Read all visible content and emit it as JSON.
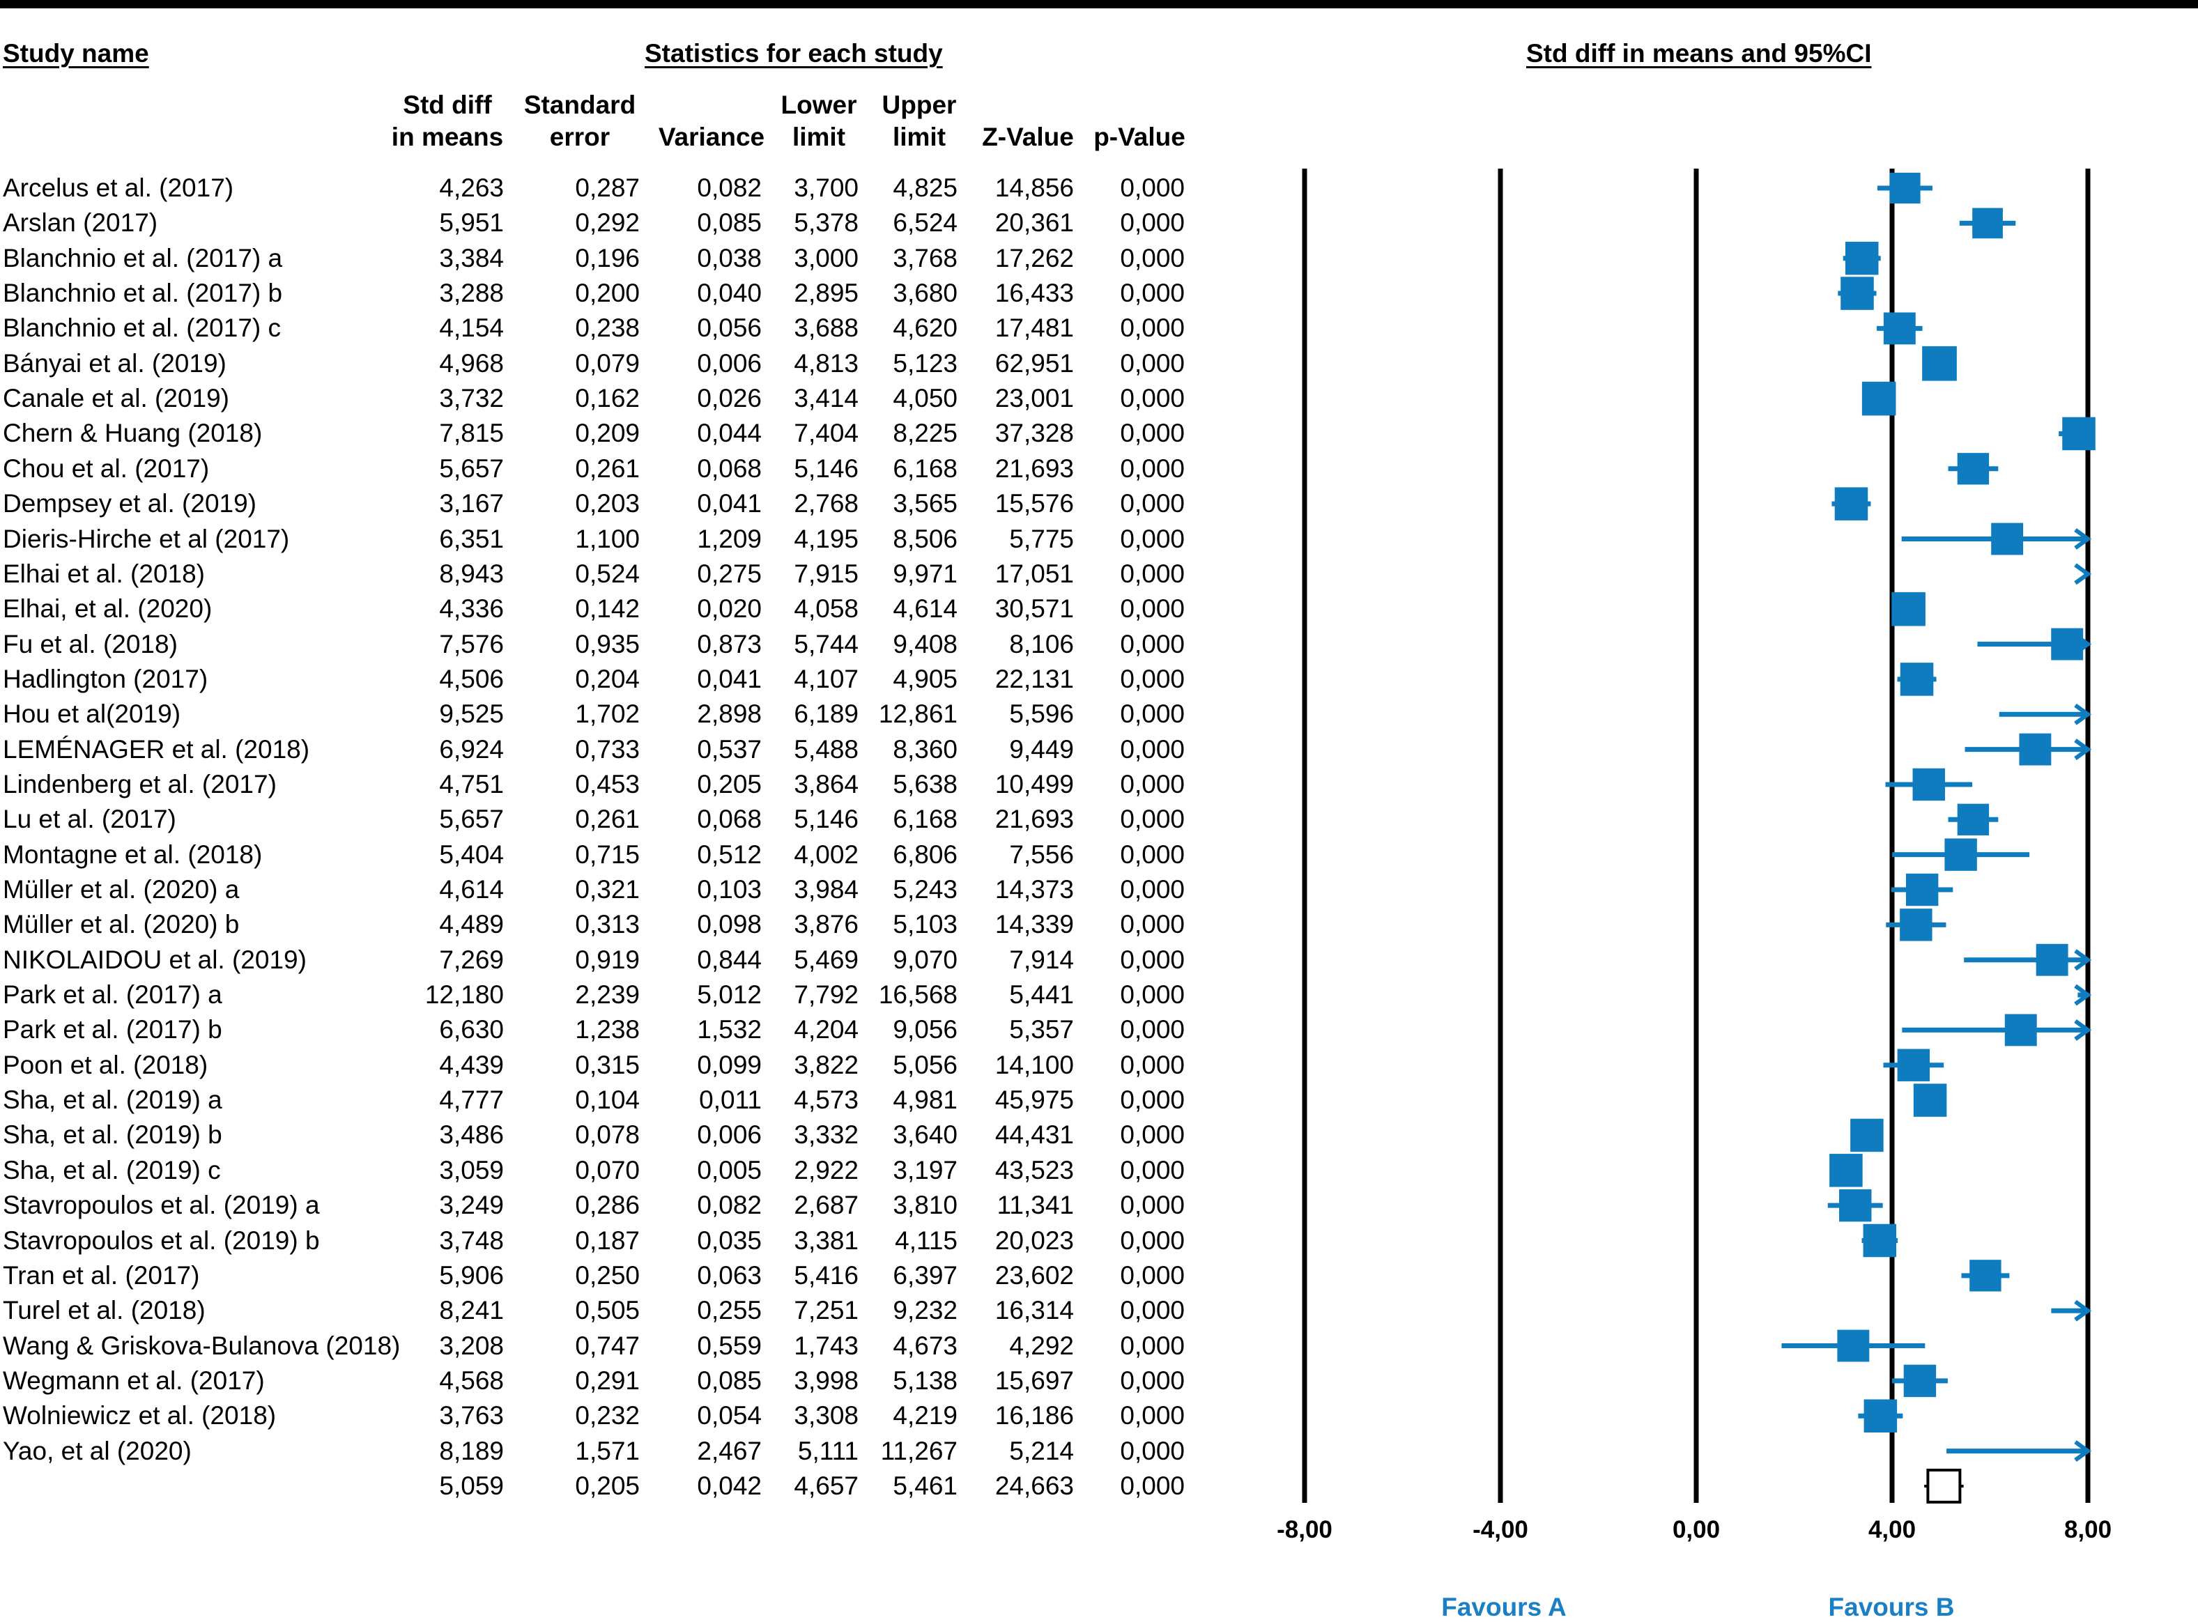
{
  "headers": {
    "study_name": "Study name",
    "stats": "Statistics for each study",
    "plot": "Std diff in means and 95%CI"
  },
  "columns": {
    "smd": [
      "Std diff",
      "in means"
    ],
    "se": [
      "Standard",
      "error"
    ],
    "variance": [
      "Variance"
    ],
    "lower": [
      "Lower",
      "limit"
    ],
    "upper": [
      "Upper",
      "limit"
    ],
    "z": [
      "Z-Value"
    ],
    "p": [
      "p-Value"
    ]
  },
  "rows": [
    {
      "name": "Arcelus et al. (2017)",
      "smd": "4,263",
      "se": "0,287",
      "var": "0,082",
      "lo": "3,700",
      "hi": "4,825",
      "z": "14,856",
      "p": "0,000"
    },
    {
      "name": "Arslan (2017)",
      "smd": "5,951",
      "se": "0,292",
      "var": "0,085",
      "lo": "5,378",
      "hi": "6,524",
      "z": "20,361",
      "p": "0,000"
    },
    {
      "name": "Blanchnio et al. (2017) a",
      "smd": "3,384",
      "se": "0,196",
      "var": "0,038",
      "lo": "3,000",
      "hi": "3,768",
      "z": "17,262",
      "p": "0,000"
    },
    {
      "name": "Blanchnio et al. (2017) b",
      "smd": "3,288",
      "se": "0,200",
      "var": "0,040",
      "lo": "2,895",
      "hi": "3,680",
      "z": "16,433",
      "p": "0,000"
    },
    {
      "name": "Blanchnio et al. (2017) c",
      "smd": "4,154",
      "se": "0,238",
      "var": "0,056",
      "lo": "3,688",
      "hi": "4,620",
      "z": "17,481",
      "p": "0,000"
    },
    {
      "name": "Bányai et al. (2019)",
      "smd": "4,968",
      "se": "0,079",
      "var": "0,006",
      "lo": "4,813",
      "hi": "5,123",
      "z": "62,951",
      "p": "0,000"
    },
    {
      "name": "Canale et al. (2019)",
      "smd": "3,732",
      "se": "0,162",
      "var": "0,026",
      "lo": "3,414",
      "hi": "4,050",
      "z": "23,001",
      "p": "0,000"
    },
    {
      "name": "Chern & Huang (2018)",
      "smd": "7,815",
      "se": "0,209",
      "var": "0,044",
      "lo": "7,404",
      "hi": "8,225",
      "z": "37,328",
      "p": "0,000"
    },
    {
      "name": "Chou et al. (2017)",
      "smd": "5,657",
      "se": "0,261",
      "var": "0,068",
      "lo": "5,146",
      "hi": "6,168",
      "z": "21,693",
      "p": "0,000"
    },
    {
      "name": "Dempsey et al. (2019)",
      "smd": "3,167",
      "se": "0,203",
      "var": "0,041",
      "lo": "2,768",
      "hi": "3,565",
      "z": "15,576",
      "p": "0,000"
    },
    {
      "name": "Dieris-Hirche et al (2017)",
      "smd": "6,351",
      "se": "1,100",
      "var": "1,209",
      "lo": "4,195",
      "hi": "8,506",
      "z": "5,775",
      "p": "0,000"
    },
    {
      "name": "Elhai et al. (2018)",
      "smd": "8,943",
      "se": "0,524",
      "var": "0,275",
      "lo": "7,915",
      "hi": "9,971",
      "z": "17,051",
      "p": "0,000"
    },
    {
      "name": "Elhai, et al. (2020)",
      "smd": "4,336",
      "se": "0,142",
      "var": "0,020",
      "lo": "4,058",
      "hi": "4,614",
      "z": "30,571",
      "p": "0,000"
    },
    {
      "name": "Fu et al. (2018)",
      "smd": "7,576",
      "se": "0,935",
      "var": "0,873",
      "lo": "5,744",
      "hi": "9,408",
      "z": "8,106",
      "p": "0,000"
    },
    {
      "name": "Hadlington (2017)",
      "smd": "4,506",
      "se": "0,204",
      "var": "0,041",
      "lo": "4,107",
      "hi": "4,905",
      "z": "22,131",
      "p": "0,000"
    },
    {
      "name": "Hou et al(2019)",
      "smd": "9,525",
      "se": "1,702",
      "var": "2,898",
      "lo": "6,189",
      "hi": "12,861",
      "z": "5,596",
      "p": "0,000"
    },
    {
      "name": "LEMÉNAGER et al. (2018)",
      "smd": "6,924",
      "se": "0,733",
      "var": "0,537",
      "lo": "5,488",
      "hi": "8,360",
      "z": "9,449",
      "p": "0,000"
    },
    {
      "name": "Lindenberg et al. (2017)",
      "smd": "4,751",
      "se": "0,453",
      "var": "0,205",
      "lo": "3,864",
      "hi": "5,638",
      "z": "10,499",
      "p": "0,000"
    },
    {
      "name": "Lu et al. (2017)",
      "smd": "5,657",
      "se": "0,261",
      "var": "0,068",
      "lo": "5,146",
      "hi": "6,168",
      "z": "21,693",
      "p": "0,000"
    },
    {
      "name": "Montagne et al. (2018)",
      "smd": "5,404",
      "se": "0,715",
      "var": "0,512",
      "lo": "4,002",
      "hi": "6,806",
      "z": "7,556",
      "p": "0,000"
    },
    {
      "name": "Müller et al. (2020) a",
      "smd": "4,614",
      "se": "0,321",
      "var": "0,103",
      "lo": "3,984",
      "hi": "5,243",
      "z": "14,373",
      "p": "0,000"
    },
    {
      "name": "Müller et al. (2020) b",
      "smd": "4,489",
      "se": "0,313",
      "var": "0,098",
      "lo": "3,876",
      "hi": "5,103",
      "z": "14,339",
      "p": "0,000"
    },
    {
      "name": "NIKOLAIDOU et al. (2019)",
      "smd": "7,269",
      "se": "0,919",
      "var": "0,844",
      "lo": "5,469",
      "hi": "9,070",
      "z": "7,914",
      "p": "0,000"
    },
    {
      "name": "Park et al. (2017) a",
      "smd": "12,180",
      "se": "2,239",
      "var": "5,012",
      "lo": "7,792",
      "hi": "16,568",
      "z": "5,441",
      "p": "0,000"
    },
    {
      "name": "Park et al. (2017) b",
      "smd": "6,630",
      "se": "1,238",
      "var": "1,532",
      "lo": "4,204",
      "hi": "9,056",
      "z": "5,357",
      "p": "0,000"
    },
    {
      "name": "Poon et al. (2018)",
      "smd": "4,439",
      "se": "0,315",
      "var": "0,099",
      "lo": "3,822",
      "hi": "5,056",
      "z": "14,100",
      "p": "0,000"
    },
    {
      "name": "Sha, et al. (2019) a",
      "smd": "4,777",
      "se": "0,104",
      "var": "0,011",
      "lo": "4,573",
      "hi": "4,981",
      "z": "45,975",
      "p": "0,000"
    },
    {
      "name": "Sha, et al. (2019) b",
      "smd": "3,486",
      "se": "0,078",
      "var": "0,006",
      "lo": "3,332",
      "hi": "3,640",
      "z": "44,431",
      "p": "0,000"
    },
    {
      "name": "Sha, et al. (2019) c",
      "smd": "3,059",
      "se": "0,070",
      "var": "0,005",
      "lo": "2,922",
      "hi": "3,197",
      "z": "43,523",
      "p": "0,000"
    },
    {
      "name": "Stavropoulos et al. (2019) a",
      "smd": "3,249",
      "se": "0,286",
      "var": "0,082",
      "lo": "2,687",
      "hi": "3,810",
      "z": "11,341",
      "p": "0,000"
    },
    {
      "name": "Stavropoulos et al. (2019) b",
      "smd": "3,748",
      "se": "0,187",
      "var": "0,035",
      "lo": "3,381",
      "hi": "4,115",
      "z": "20,023",
      "p": "0,000"
    },
    {
      "name": "Tran et al. (2017)",
      "smd": "5,906",
      "se": "0,250",
      "var": "0,063",
      "lo": "5,416",
      "hi": "6,397",
      "z": "23,602",
      "p": "0,000"
    },
    {
      "name": "Turel et al. (2018)",
      "smd": "8,241",
      "se": "0,505",
      "var": "0,255",
      "lo": "7,251",
      "hi": "9,232",
      "z": "16,314",
      "p": "0,000"
    },
    {
      "name": "Wang & Griskova-Bulanova (2018)",
      "smd": "3,208",
      "se": "0,747",
      "var": "0,559",
      "lo": "1,743",
      "hi": "4,673",
      "z": "4,292",
      "p": "0,000"
    },
    {
      "name": "Wegmann et al. (2017)",
      "smd": "4,568",
      "se": "0,291",
      "var": "0,085",
      "lo": "3,998",
      "hi": "5,138",
      "z": "15,697",
      "p": "0,000"
    },
    {
      "name": "Wolniewicz et al. (2018)",
      "smd": "3,763",
      "se": "0,232",
      "var": "0,054",
      "lo": "3,308",
      "hi": "4,219",
      "z": "16,186",
      "p": "0,000"
    },
    {
      "name": "Yao, et al (2020)",
      "smd": "8,189",
      "se": "1,571",
      "var": "2,467",
      "lo": "5,111",
      "hi": "11,267",
      "z": "5,214",
      "p": "0,000"
    }
  ],
  "summary": {
    "smd": "5,059",
    "se": "0,205",
    "var": "0,042",
    "lo": "4,657",
    "hi": "5,461",
    "z": "24,663",
    "p": "0,000"
  },
  "axis": {
    "ticks": [
      "-8,00",
      "-4,00",
      "0,00",
      "4,00",
      "8,00"
    ]
  },
  "favours": {
    "a": "Favours A",
    "b": "Favours B"
  },
  "colors": {
    "marker": "#0f7cc0",
    "favour_text": "#1a7fc4",
    "summary_fill": "#ffffff",
    "summary_stroke": "#000000"
  },
  "chart_data": {
    "type": "forest",
    "xlabel": "Std diff in means and 95%CI",
    "xlim": [
      -8,
      8
    ],
    "x_ticks": [
      -8,
      -4,
      0,
      4,
      8
    ],
    "studies": [
      {
        "name": "Arcelus et al. (2017)",
        "effect": 4.263,
        "lower": 3.7,
        "upper": 4.825,
        "weight": 0.82
      },
      {
        "name": "Arslan (2017)",
        "effect": 5.951,
        "lower": 5.378,
        "upper": 6.524,
        "weight": 0.81
      },
      {
        "name": "Blanchnio et al. (2017) a",
        "effect": 3.384,
        "lower": 3.0,
        "upper": 3.768,
        "weight": 0.88
      },
      {
        "name": "Blanchnio et al. (2017) b",
        "effect": 3.288,
        "lower": 2.895,
        "upper": 3.68,
        "weight": 0.88
      },
      {
        "name": "Blanchnio et al. (2017) c",
        "effect": 4.154,
        "lower": 3.688,
        "upper": 4.62,
        "weight": 0.85
      },
      {
        "name": "Bányai et al. (2019)",
        "effect": 4.968,
        "lower": 4.813,
        "upper": 5.123,
        "weight": 0.92
      },
      {
        "name": "Canale et al. (2019)",
        "effect": 3.732,
        "lower": 3.414,
        "upper": 4.05,
        "weight": 0.9
      },
      {
        "name": "Chern & Huang (2018)",
        "effect": 7.815,
        "lower": 7.404,
        "upper": 8.225,
        "weight": 0.88
      },
      {
        "name": "Chou et al. (2017)",
        "effect": 5.657,
        "lower": 5.146,
        "upper": 6.168,
        "weight": 0.84
      },
      {
        "name": "Dempsey et al. (2019)",
        "effect": 3.167,
        "lower": 2.768,
        "upper": 3.565,
        "weight": 0.88
      },
      {
        "name": "Dieris-Hirche et al (2017)",
        "effect": 6.351,
        "lower": 4.195,
        "upper": 8.506,
        "weight": 0.85
      },
      {
        "name": "Elhai et al. (2018)",
        "effect": 8.943,
        "lower": 7.915,
        "upper": 9.971,
        "weight": 0.76
      },
      {
        "name": "Elhai, et al. (2020)",
        "effect": 4.336,
        "lower": 4.058,
        "upper": 4.614,
        "weight": 0.9
      },
      {
        "name": "Fu et al. (2018)",
        "effect": 7.576,
        "lower": 5.744,
        "upper": 9.408,
        "weight": 0.85
      },
      {
        "name": "Hadlington (2017)",
        "effect": 4.506,
        "lower": 4.107,
        "upper": 4.905,
        "weight": 0.88
      },
      {
        "name": "Hou et al(2019)",
        "effect": 9.525,
        "lower": 6.189,
        "upper": 12.861,
        "weight": 0.6
      },
      {
        "name": "LEMÉNAGER et al. (2018)",
        "effect": 6.924,
        "lower": 5.488,
        "upper": 8.36,
        "weight": 0.85
      },
      {
        "name": "Lindenberg et al. (2017)",
        "effect": 4.751,
        "lower": 3.864,
        "upper": 5.638,
        "weight": 0.86
      },
      {
        "name": "Lu et al. (2017)",
        "effect": 5.657,
        "lower": 5.146,
        "upper": 6.168,
        "weight": 0.84
      },
      {
        "name": "Montagne et al. (2018)",
        "effect": 5.404,
        "lower": 4.002,
        "upper": 6.806,
        "weight": 0.86
      },
      {
        "name": "Müller et al. (2020) a",
        "effect": 4.614,
        "lower": 3.984,
        "upper": 5.243,
        "weight": 0.86
      },
      {
        "name": "Müller et al. (2020) b",
        "effect": 4.489,
        "lower": 3.876,
        "upper": 5.103,
        "weight": 0.86
      },
      {
        "name": "NIKOLAIDOU et al. (2019)",
        "effect": 7.269,
        "lower": 5.469,
        "upper": 9.07,
        "weight": 0.85
      },
      {
        "name": "Park et al. (2017) a",
        "effect": 12.18,
        "lower": 7.792,
        "upper": 16.568,
        "weight": 0.6
      },
      {
        "name": "Park et al. (2017) b",
        "effect": 6.63,
        "lower": 4.204,
        "upper": 9.056,
        "weight": 0.85
      },
      {
        "name": "Poon et al. (2018)",
        "effect": 4.439,
        "lower": 3.822,
        "upper": 5.056,
        "weight": 0.86
      },
      {
        "name": "Sha, et al. (2019) a",
        "effect": 4.777,
        "lower": 4.573,
        "upper": 4.981,
        "weight": 0.88
      },
      {
        "name": "Sha, et al. (2019) b",
        "effect": 3.486,
        "lower": 3.332,
        "upper": 3.64,
        "weight": 0.88
      },
      {
        "name": "Sha, et al. (2019) c",
        "effect": 3.059,
        "lower": 2.922,
        "upper": 3.197,
        "weight": 0.88
      },
      {
        "name": "Stavropoulos et al. (2019) a",
        "effect": 3.249,
        "lower": 2.687,
        "upper": 3.81,
        "weight": 0.86
      },
      {
        "name": "Stavropoulos et al. (2019) b",
        "effect": 3.748,
        "lower": 3.381,
        "upper": 4.115,
        "weight": 0.88
      },
      {
        "name": "Tran et al. (2017)",
        "effect": 5.906,
        "lower": 5.416,
        "upper": 6.397,
        "weight": 0.84
      },
      {
        "name": "Turel et al. (2018)",
        "effect": 8.241,
        "lower": 7.251,
        "upper": 9.232,
        "weight": 0.76
      },
      {
        "name": "Wang & Griskova-Bulanova (2018)",
        "effect": 3.208,
        "lower": 1.743,
        "upper": 4.673,
        "weight": 0.85
      },
      {
        "name": "Wegmann et al. (2017)",
        "effect": 4.568,
        "lower": 3.998,
        "upper": 5.138,
        "weight": 0.86
      },
      {
        "name": "Wolniewicz et al. (2018)",
        "effect": 3.763,
        "lower": 3.308,
        "upper": 4.219,
        "weight": 0.88
      },
      {
        "name": "Yao, et al (2020)",
        "effect": 8.189,
        "lower": 5.111,
        "upper": 11.267,
        "weight": 0.76
      }
    ],
    "summary": {
      "effect": 5.059,
      "lower": 4.657,
      "upper": 5.461
    }
  }
}
